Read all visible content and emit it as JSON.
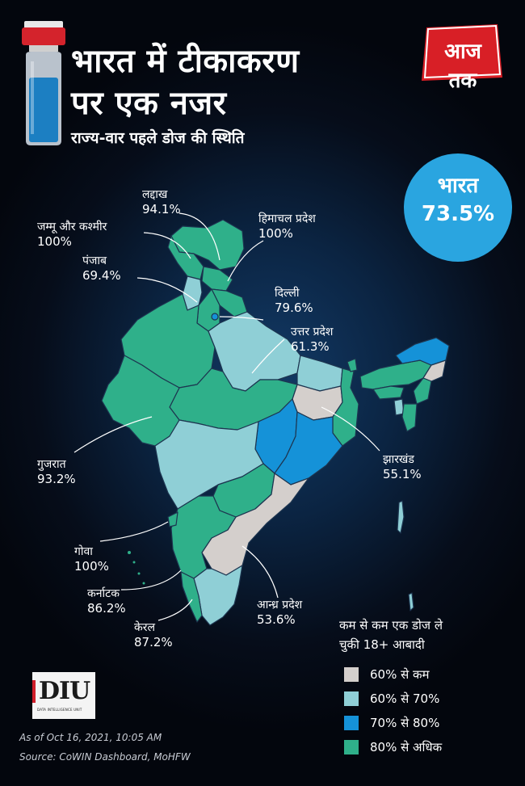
{
  "header": {
    "title_line1": "भारत में टीकाकरण",
    "title_line2": "पर एक नजर",
    "subtitle": "राज्य-वार पहले डोज की स्थिति"
  },
  "logo": {
    "text": "आज तक",
    "icon": "aaj-tak-logo"
  },
  "national": {
    "name": "भारत",
    "value": "73.5%"
  },
  "states": [
    {
      "name": "लद्दाख",
      "value": "94.1%"
    },
    {
      "name": "जम्मू और कश्मीर",
      "value": "100%"
    },
    {
      "name": "हिमाचल प्रदेश",
      "value": "100%"
    },
    {
      "name": "पंजाब",
      "value": "69.4%"
    },
    {
      "name": "दिल्ली",
      "value": "79.6%"
    },
    {
      "name": "उत्तर प्रदेश",
      "value": "61.3%"
    },
    {
      "name": "गुजरात",
      "value": "93.2%"
    },
    {
      "name": "झारखंड",
      "value": "55.1%"
    },
    {
      "name": "गोवा",
      "value": "100%"
    },
    {
      "name": "कर्नाटक",
      "value": "86.2%"
    },
    {
      "name": "आन्ध्र प्रदेश",
      "value": "53.6%"
    },
    {
      "name": "केरल",
      "value": "87.2%"
    }
  ],
  "legend": {
    "title_line1": "कम से कम एक डोज ले",
    "title_line2": "चुकी 18+ आबादी",
    "items": [
      {
        "label": "60% से कम",
        "color": "#d4cfcc"
      },
      {
        "label": "60% से 70%",
        "color": "#8fcfd6"
      },
      {
        "label": "70% से 80%",
        "color": "#1592d8"
      },
      {
        "label": "80% से अधिक",
        "color": "#2fb08a"
      }
    ]
  },
  "colors": {
    "low": "#d4cfcc",
    "mid": "#8fcfd6",
    "high": "#1592d8",
    "top": "#2fb08a"
  },
  "credit": {
    "brand": "DIU",
    "tagline": "DATA INTELLIGENCE UNIT"
  },
  "footer": {
    "asof": "As of Oct 16, 2021, 10:05 AM",
    "source": "Source: CoWIN Dashboard, MoHFW"
  }
}
